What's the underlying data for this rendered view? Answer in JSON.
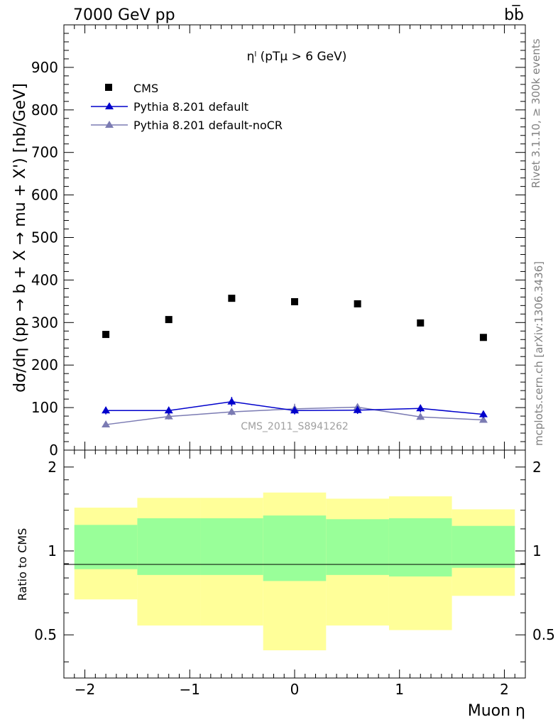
{
  "header": {
    "energy_label": "7000 GeV pp",
    "process_label": "bb̅"
  },
  "sidebar": {
    "rivet_label": "Rivet 3.1.10, ≥ 300k events",
    "mcplots_label": "mcplots.cern.ch [arXiv:1306.3436]"
  },
  "chart_data": {
    "type": "scatter",
    "title": "ηˡ (pTμ > 6 GeV)",
    "ylabel": "dσ/dη (pp → b + X → mu + X') [nb/GeV]",
    "xlabel": "Muon η",
    "ratio_ylabel": "Ratio to CMS",
    "watermark": "CMS_2011_S8941262",
    "xlim": [
      -2.2,
      2.2
    ],
    "ylim": [
      0,
      1000
    ],
    "ratio_ylim": [
      0.35,
      2.3
    ],
    "ratio_log": true,
    "grid": false,
    "legend_position": "top-left",
    "x_ticks": [
      -2,
      -1,
      0,
      1,
      2
    ],
    "x_tick_labels": [
      "−2",
      "−1",
      "0",
      "1",
      "2"
    ],
    "y_ticks": [
      0,
      100,
      200,
      300,
      400,
      500,
      600,
      700,
      800,
      900
    ],
    "y_tick_labels": [
      "0",
      "100",
      "200",
      "300",
      "400",
      "500",
      "600",
      "700",
      "800",
      "900"
    ],
    "ratio_ticks": [
      0.5,
      1,
      2
    ],
    "ratio_tick_labels": [
      "0.5",
      "1",
      "2"
    ],
    "bin_edges": [
      -2.1,
      -1.5,
      -0.9,
      -0.3,
      0.3,
      0.9,
      1.5,
      2.1
    ],
    "x": [
      -1.8,
      -1.2,
      -0.6,
      0.0,
      0.6,
      1.2,
      1.8
    ],
    "series": [
      {
        "name": "CMS",
        "marker": "square",
        "color": "#000000",
        "values": [
          272,
          307,
          357,
          349,
          344,
          299,
          265
        ]
      },
      {
        "name": "Pythia 8.201 default",
        "marker": "triangle",
        "color": "#0000cc",
        "values": [
          93,
          93,
          114,
          93,
          94,
          98,
          84
        ],
        "errors": [
          9,
          9,
          11,
          9,
          9,
          9,
          8
        ]
      },
      {
        "name": "Pythia 8.201 default-noCR",
        "marker": "triangle",
        "color": "#7b7bb3",
        "values": [
          60,
          79,
          90,
          97,
          101,
          78,
          71
        ],
        "errors": [
          6,
          7,
          8,
          12,
          8,
          7,
          6
        ]
      }
    ],
    "ratio_bands": {
      "outer_color": "#ffff99",
      "inner_color": "#99ff99",
      "outer": [
        [
          0.67,
          1.43
        ],
        [
          0.54,
          1.55
        ],
        [
          0.54,
          1.55
        ],
        [
          0.44,
          1.62
        ],
        [
          0.54,
          1.54
        ],
        [
          0.52,
          1.57
        ],
        [
          0.69,
          1.41
        ]
      ],
      "inner": [
        [
          0.86,
          1.24
        ],
        [
          0.82,
          1.31
        ],
        [
          0.82,
          1.31
        ],
        [
          0.78,
          1.34
        ],
        [
          0.82,
          1.3
        ],
        [
          0.81,
          1.31
        ],
        [
          0.87,
          1.23
        ]
      ]
    }
  }
}
